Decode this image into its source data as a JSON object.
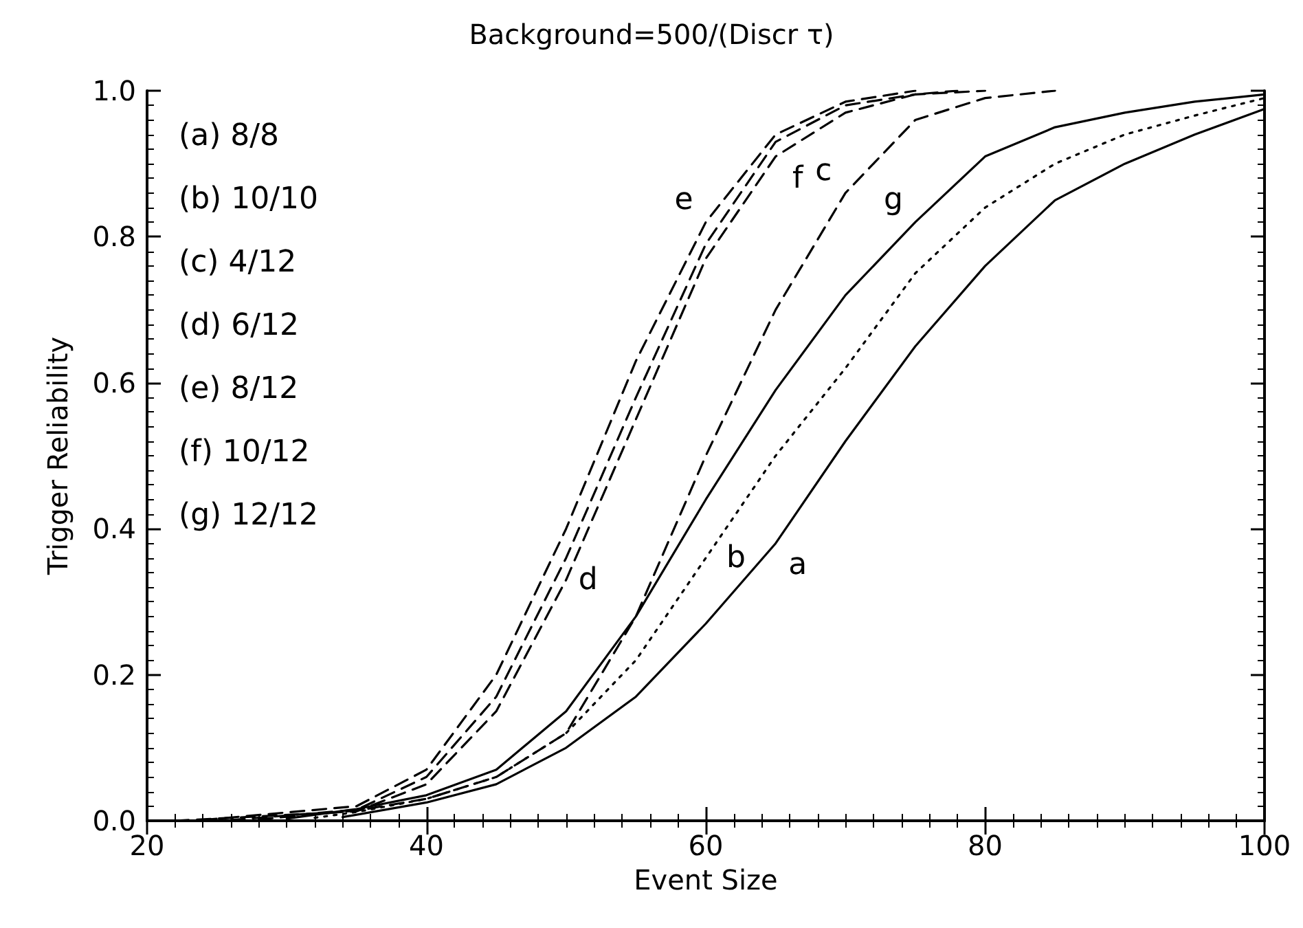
{
  "chart_data": {
    "type": "line",
    "title": "Background=500/(Discr τ)",
    "xlabel": "Event Size",
    "ylabel": "Trigger Reliability",
    "xlim": [
      20,
      100
    ],
    "xticks": [
      20,
      40,
      60,
      80,
      100
    ],
    "ylim": [
      0,
      1
    ],
    "yticks": [
      {
        "value": 0,
        "label": "0.0"
      },
      0.2,
      0.4,
      0.6,
      0.8,
      {
        "value": 1,
        "label": "1.0"
      }
    ],
    "grid": false,
    "marker": "none",
    "series": [
      {
        "color": "#000000",
        "line_style": "solid",
        "x": [
          34,
          40,
          45,
          50,
          55,
          60,
          65,
          70,
          75,
          80,
          85,
          90,
          95,
          100
        ],
        "values": [
          0.005,
          0.025,
          0.05,
          0.1,
          0.17,
          0.27,
          0.38,
          0.52,
          0.65,
          0.76,
          0.85,
          0.9,
          0.94,
          0.975
        ]
      },
      {
        "color": "#000000",
        "line_style": "dotted",
        "x": [
          32,
          35,
          40,
          45,
          50,
          55,
          60,
          65,
          70,
          75,
          80,
          85,
          90,
          95,
          100
        ],
        "values": [
          0.004,
          0.012,
          0.03,
          0.06,
          0.12,
          0.22,
          0.36,
          0.5,
          0.62,
          0.75,
          0.84,
          0.9,
          0.94,
          0.966,
          0.99
        ]
      },
      {
        "color": "#000000",
        "line_style": "dashed",
        "x": [
          28,
          35,
          40,
          45,
          50,
          55,
          60,
          65,
          70,
          75,
          80,
          85
        ],
        "values": [
          0.002,
          0.014,
          0.03,
          0.06,
          0.12,
          0.28,
          0.5,
          0.7,
          0.86,
          0.96,
          0.99,
          1
        ]
      },
      {
        "color": "#000000",
        "line_style": "dashed",
        "x": [
          26,
          35,
          40,
          45,
          50,
          55,
          60,
          65,
          70,
          75,
          80
        ],
        "values": [
          0.001,
          0.015,
          0.06,
          0.17,
          0.36,
          0.58,
          0.79,
          0.93,
          0.98,
          0.995,
          1
        ]
      },
      {
        "color": "#000000",
        "line_style": "dashed",
        "x": [
          24,
          35,
          40,
          45,
          50,
          55,
          60,
          65,
          70,
          75
        ],
        "values": [
          0.001,
          0.02,
          0.07,
          0.2,
          0.4,
          0.63,
          0.82,
          0.94,
          0.985,
          1
        ]
      },
      {
        "color": "#000000",
        "line_style": "dashed",
        "x": [
          22,
          35,
          40,
          45,
          50,
          55,
          60,
          65,
          70,
          75,
          78
        ],
        "values": [
          0,
          0.013,
          0.05,
          0.15,
          0.33,
          0.55,
          0.77,
          0.91,
          0.97,
          0.995,
          1
        ]
      },
      {
        "color": "#000000",
        "line_style": "solid",
        "x": [
          30,
          35,
          40,
          45,
          50,
          55,
          60,
          65,
          70,
          75,
          80,
          85,
          90,
          95,
          100
        ],
        "values": [
          0.003,
          0.016,
          0.035,
          0.07,
          0.15,
          0.28,
          0.44,
          0.59,
          0.72,
          0.82,
          0.91,
          0.95,
          0.97,
          0.985,
          0.995
        ]
      }
    ],
    "annotations": [
      "(a) 8/8",
      "(b) 10/10",
      "(c) 4/12",
      "(d) 6/12",
      "(e) 8/12",
      "(f) 10/12",
      "(g) 12/12",
      {
        "text": "a",
        "x": 65,
        "y": 0.38
      },
      {
        "text": "b",
        "x": 60,
        "y": 0.36
      },
      {
        "text": "c",
        "x": 70,
        "y": 0.86
      },
      {
        "text": "d",
        "x": 50,
        "y": 0.36
      },
      {
        "text": "e",
        "x": 60,
        "y": 0.82
      },
      {
        "text": "f",
        "x": 65,
        "y": 0.91
      },
      {
        "text": "g",
        "x": 75,
        "y": 0.82
      }
    ]
  }
}
